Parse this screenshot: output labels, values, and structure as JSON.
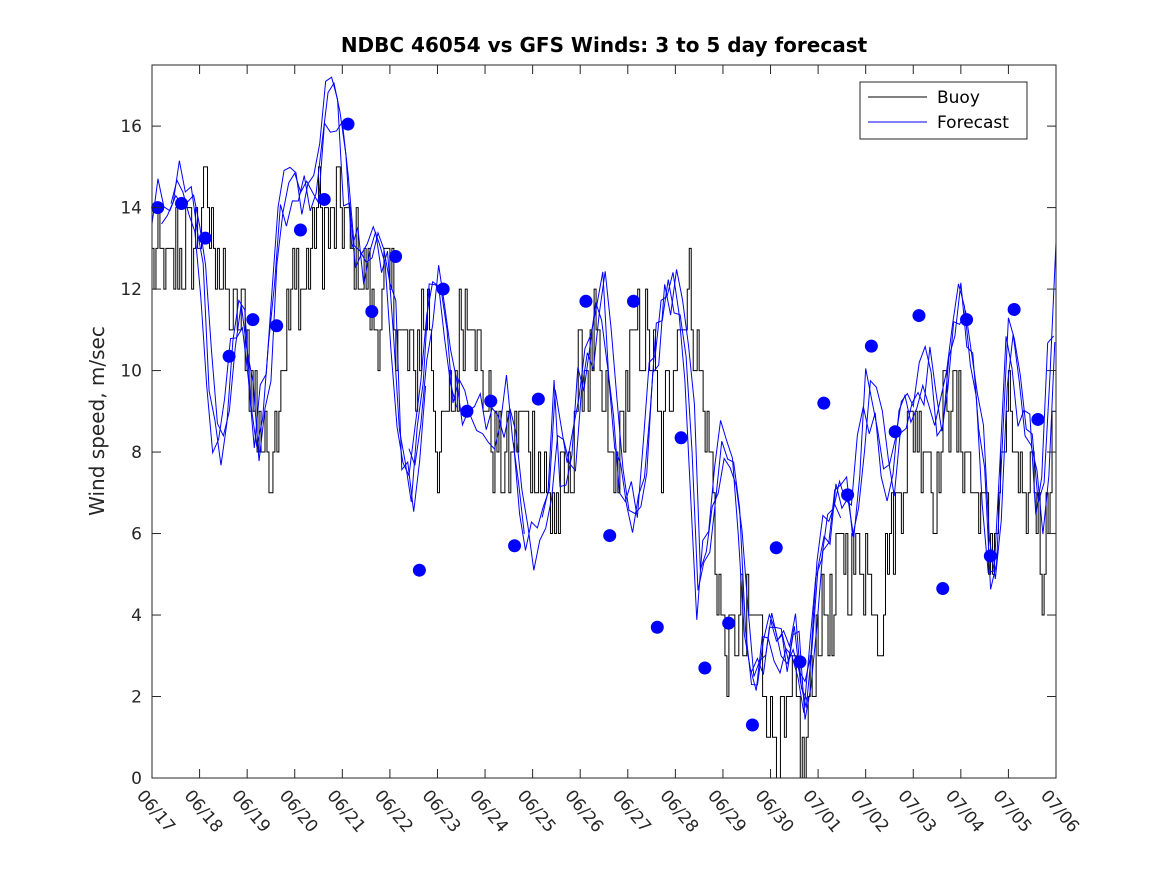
{
  "chart_data": {
    "type": "line",
    "title": "NDBC 46054 vs GFS Winds: 3 to 5 day forecast",
    "ylabel": "Wind speed, m/sec",
    "xlabel": "",
    "x_axis": {
      "unit": "day",
      "range": [
        "06/17",
        "07/06"
      ],
      "tick_labels": [
        "06/17",
        "06/18",
        "06/19",
        "06/20",
        "06/21",
        "06/22",
        "06/23",
        "06/24",
        "06/25",
        "06/26",
        "06/27",
        "06/28",
        "06/29",
        "06/30",
        "07/01",
        "07/02",
        "07/03",
        "07/04",
        "07/05",
        "07/06"
      ]
    },
    "ylim": [
      0,
      17.5
    ],
    "y_ticks": [
      0,
      2,
      4,
      6,
      8,
      10,
      12,
      14,
      16
    ],
    "grid": false,
    "legend": {
      "position": "top-right",
      "entries": [
        {
          "label": "Buoy",
          "color": "#000000"
        },
        {
          "label": "Forecast",
          "color": "#0000ff"
        }
      ]
    },
    "colors": {
      "buoy": "#000000",
      "forecast": "#0000ff"
    },
    "buoy_anchor": {
      "day": [
        0.0,
        0.3,
        0.6,
        0.9,
        1.0,
        1.3,
        1.5,
        1.7,
        1.9,
        2.2,
        2.5,
        2.7,
        3.0,
        3.3,
        3.5,
        3.7,
        3.9,
        4.2,
        4.5,
        4.7,
        5.0,
        5.2,
        5.5,
        5.8,
        6.0,
        6.3,
        6.5,
        6.7,
        6.9,
        7.2,
        7.5,
        7.7,
        8.0,
        8.3,
        8.5,
        8.7,
        9.0,
        9.3,
        9.5,
        9.7,
        10.0,
        10.3,
        10.5,
        10.7,
        11.0,
        11.3,
        11.5,
        11.7,
        12.0,
        12.3,
        12.5,
        12.7,
        13.0,
        13.3,
        13.5,
        13.7,
        14.0,
        14.3,
        14.5,
        14.7,
        15.0,
        15.3,
        15.5,
        15.7,
        16.0,
        16.3,
        16.5,
        16.7,
        17.0,
        17.3,
        17.5,
        17.7,
        18.0,
        18.3,
        18.5,
        18.7,
        19.0
      ],
      "speed": [
        13,
        12.5,
        13,
        13,
        14,
        13.5,
        12,
        11,
        11.5,
        9,
        8,
        10,
        12,
        12.5,
        14,
        13,
        14,
        13,
        12,
        11.5,
        12,
        11,
        10,
        12,
        8,
        9,
        11,
        12,
        10,
        8,
        7.5,
        9,
        8,
        7,
        6.5,
        7,
        10,
        10.5,
        9,
        7,
        10,
        11,
        10.5,
        8,
        11,
        12,
        10,
        8,
        3,
        3.5,
        3.5,
        4,
        1,
        1,
        2,
        0.5,
        4,
        3.5,
        6,
        5,
        5.5,
        3.5,
        6,
        7,
        9,
        8,
        7,
        9.5,
        8.5,
        7,
        6,
        5.5,
        9,
        6,
        8,
        5,
        10,
        10.5,
        11
      ]
    },
    "forecast_anchor": {
      "day": [
        0.0,
        0.3,
        0.6,
        0.9,
        1.0,
        1.3,
        1.5,
        1.7,
        1.9,
        2.2,
        2.5,
        2.7,
        3.0,
        3.3,
        3.5,
        3.7,
        3.9,
        4.2,
        4.5,
        4.7,
        5.0,
        5.2,
        5.5,
        5.8,
        6.0,
        6.3,
        6.5,
        6.7,
        6.9,
        7.2,
        7.5,
        7.7,
        8.0,
        8.3,
        8.5,
        8.7,
        9.0,
        9.3,
        9.5,
        9.7,
        10.0,
        10.3,
        10.5,
        10.7,
        11.0,
        11.3,
        11.5,
        11.7,
        12.0,
        12.3,
        12.5,
        12.7,
        13.0,
        13.3,
        13.5,
        13.7,
        14.0,
        14.3,
        14.5,
        14.7,
        15.0,
        15.3,
        15.5,
        15.7,
        16.0,
        16.3,
        16.5,
        16.7,
        17.0,
        17.3,
        17.5,
        17.7,
        18.0,
        18.3,
        18.5,
        18.7,
        19.0
      ],
      "speed": [
        14,
        14.3,
        14.5,
        13.8,
        13.3,
        8.5,
        7.5,
        11,
        11.5,
        8,
        11,
        14,
        14.5,
        14.2,
        15,
        16.4,
        16.7,
        13.5,
        12.5,
        13,
        12.8,
        8,
        7,
        11.5,
        12,
        10,
        9,
        8.5,
        9,
        8.5,
        9.5,
        7,
        5.5,
        6.5,
        9.3,
        7,
        9.5,
        11,
        12,
        9,
        6.5,
        7,
        10,
        11.5,
        12,
        10,
        4,
        6,
        8.5,
        7.5,
        3,
        2.5,
        4,
        3,
        3.5,
        1.5,
        5.5,
        6.5,
        7,
        6,
        9.5,
        8.5,
        7,
        8.5,
        9,
        10.5,
        8,
        10,
        12,
        10,
        7,
        4,
        11,
        9,
        8.5,
        6,
        12.5,
        9,
        11
      ]
    },
    "forecast_markers": [
      {
        "x": 0.12,
        "y": 14.0
      },
      {
        "x": 0.62,
        "y": 14.1
      },
      {
        "x": 1.12,
        "y": 13.25
      },
      {
        "x": 1.62,
        "y": 10.35
      },
      {
        "x": 2.12,
        "y": 11.25
      },
      {
        "x": 2.62,
        "y": 11.1
      },
      {
        "x": 3.12,
        "y": 13.45
      },
      {
        "x": 3.62,
        "y": 14.2
      },
      {
        "x": 4.12,
        "y": 16.05
      },
      {
        "x": 4.62,
        "y": 11.45
      },
      {
        "x": 5.12,
        "y": 12.8
      },
      {
        "x": 5.62,
        "y": 5.1
      },
      {
        "x": 6.12,
        "y": 12.0
      },
      {
        "x": 6.62,
        "y": 9.0
      },
      {
        "x": 7.12,
        "y": 9.25
      },
      {
        "x": 7.62,
        "y": 5.7
      },
      {
        "x": 8.12,
        "y": 9.3
      },
      {
        "x": 9.12,
        "y": 11.7
      },
      {
        "x": 9.62,
        "y": 5.95
      },
      {
        "x": 10.12,
        "y": 11.7
      },
      {
        "x": 10.62,
        "y": 3.7
      },
      {
        "x": 11.12,
        "y": 8.35
      },
      {
        "x": 11.62,
        "y": 2.7
      },
      {
        "x": 12.12,
        "y": 3.8
      },
      {
        "x": 12.62,
        "y": 1.3
      },
      {
        "x": 13.12,
        "y": 5.65
      },
      {
        "x": 13.62,
        "y": 2.85
      },
      {
        "x": 14.12,
        "y": 9.2
      },
      {
        "x": 14.62,
        "y": 6.95
      },
      {
        "x": 15.12,
        "y": 10.6
      },
      {
        "x": 15.62,
        "y": 8.5
      },
      {
        "x": 16.12,
        "y": 11.35
      },
      {
        "x": 16.62,
        "y": 4.65
      },
      {
        "x": 17.12,
        "y": 11.25
      },
      {
        "x": 17.62,
        "y": 5.45
      },
      {
        "x": 18.12,
        "y": 11.5
      },
      {
        "x": 18.62,
        "y": 8.8
      }
    ]
  }
}
